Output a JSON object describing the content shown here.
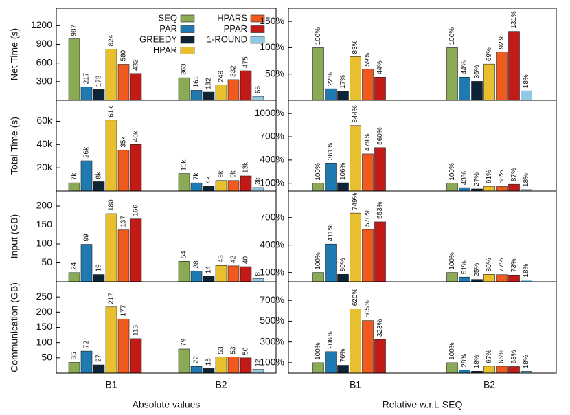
{
  "chart_data": [
    {
      "type": "bar",
      "ylabel": "Net Time (s)",
      "categories": [
        "B1",
        "B2"
      ],
      "ylim": [
        0,
        1480
      ],
      "yticks": [
        300,
        600,
        900,
        1200
      ],
      "legend": "top-right",
      "series": [
        {
          "name": "SEQ",
          "color": "#8aaa55",
          "values": [
            987,
            363
          ]
        },
        {
          "name": "PAR",
          "color": "#1e7ab0",
          "values": [
            217,
            161
          ]
        },
        {
          "name": "GREEDY",
          "color": "#0c2436",
          "values": [
            173,
            132
          ]
        },
        {
          "name": "HPAR",
          "color": "#e8bf2e",
          "values": [
            824,
            249
          ]
        },
        {
          "name": "HPARS",
          "color": "#f05a1e",
          "values": [
            580,
            332
          ]
        },
        {
          "name": "PPAR",
          "color": "#c21b17",
          "values": [
            432,
            475
          ]
        },
        {
          "name": "1-ROUND",
          "color": "#8fc9e3",
          "values": [
            null,
            65
          ]
        }
      ]
    },
    {
      "type": "bar",
      "categories": [
        "B1",
        "B2"
      ],
      "ylim": [
        0,
        175
      ],
      "yticks": [
        {
          "value": 50,
          "label": "50%"
        },
        {
          "value": 100,
          "label": "100%"
        },
        {
          "value": 150,
          "label": "150%"
        }
      ],
      "series": [
        {
          "name": "SEQ",
          "color": "#8aaa55",
          "values": [
            100,
            100
          ],
          "value_labels": [
            "100%",
            "100%"
          ]
        },
        {
          "name": "PAR",
          "color": "#1e7ab0",
          "values": [
            22,
            44
          ],
          "value_labels": [
            "22%",
            "44%"
          ]
        },
        {
          "name": "GREEDY",
          "color": "#0c2436",
          "values": [
            17,
            36
          ],
          "value_labels": [
            "17%",
            "36%"
          ]
        },
        {
          "name": "HPAR",
          "color": "#e8bf2e",
          "values": [
            83,
            69
          ],
          "value_labels": [
            "83%",
            "69%"
          ]
        },
        {
          "name": "HPARS",
          "color": "#f05a1e",
          "values": [
            59,
            92
          ],
          "value_labels": [
            "59%",
            "92%"
          ]
        },
        {
          "name": "PPAR",
          "color": "#c21b17",
          "values": [
            44,
            131
          ],
          "value_labels": [
            "44%",
            "131%"
          ]
        },
        {
          "name": "1-ROUND",
          "color": "#8fc9e3",
          "values": [
            null,
            18
          ],
          "value_labels": [
            null,
            "18%"
          ]
        }
      ]
    },
    {
      "type": "bar",
      "ylabel": "Total Time (s)",
      "categories": [
        "B1",
        "B2"
      ],
      "ylim": [
        0,
        78000
      ],
      "yticks": [
        {
          "value": 20000,
          "label": "20k"
        },
        {
          "value": 40000,
          "label": "40k"
        },
        {
          "value": 60000,
          "label": "60k"
        }
      ],
      "series": [
        {
          "name": "SEQ",
          "color": "#8aaa55",
          "values": [
            7000,
            15000
          ],
          "value_labels": [
            "7k",
            "15k"
          ]
        },
        {
          "name": "PAR",
          "color": "#1e7ab0",
          "values": [
            26000,
            7000
          ],
          "value_labels": [
            "26k",
            "7k"
          ]
        },
        {
          "name": "GREEDY",
          "color": "#0c2436",
          "values": [
            8000,
            4000
          ],
          "value_labels": [
            "8k",
            "4k"
          ]
        },
        {
          "name": "HPAR",
          "color": "#e8bf2e",
          "values": [
            61000,
            9000
          ],
          "value_labels": [
            "61k",
            "9k"
          ]
        },
        {
          "name": "HPARS",
          "color": "#f05a1e",
          "values": [
            35000,
            9000
          ],
          "value_labels": [
            "35k",
            "9k"
          ]
        },
        {
          "name": "PPAR",
          "color": "#c21b17",
          "values": [
            40000,
            13000
          ],
          "value_labels": [
            "40k",
            "13k"
          ]
        },
        {
          "name": "1-ROUND",
          "color": "#8fc9e3",
          "values": [
            null,
            3000
          ],
          "value_labels": [
            null,
            "3k"
          ]
        }
      ]
    },
    {
      "type": "bar",
      "categories": [
        "B1",
        "B2"
      ],
      "ylim": [
        0,
        1170
      ],
      "yticks": [
        {
          "value": 100,
          "label": "100%"
        },
        {
          "value": 400,
          "label": "400%"
        },
        {
          "value": 700,
          "label": "700%"
        },
        {
          "value": 1000,
          "label": "1000%"
        }
      ],
      "series": [
        {
          "name": "SEQ",
          "color": "#8aaa55",
          "values": [
            100,
            100
          ],
          "value_labels": [
            "100%",
            "100%"
          ]
        },
        {
          "name": "PAR",
          "color": "#1e7ab0",
          "values": [
            361,
            43
          ],
          "value_labels": [
            "361%",
            "43%"
          ]
        },
        {
          "name": "GREEDY",
          "color": "#0c2436",
          "values": [
            106,
            27
          ],
          "value_labels": [
            "106%",
            "27%"
          ]
        },
        {
          "name": "HPAR",
          "color": "#e8bf2e",
          "values": [
            844,
            61
          ],
          "value_labels": [
            "844%",
            "61%"
          ]
        },
        {
          "name": "HPARS",
          "color": "#f05a1e",
          "values": [
            479,
            58
          ],
          "value_labels": [
            "479%",
            "58%"
          ]
        },
        {
          "name": "PPAR",
          "color": "#c21b17",
          "values": [
            560,
            87
          ],
          "value_labels": [
            "560%",
            "87%"
          ]
        },
        {
          "name": "1-ROUND",
          "color": "#8fc9e3",
          "values": [
            null,
            18
          ],
          "value_labels": [
            null,
            "18%"
          ]
        }
      ]
    },
    {
      "type": "bar",
      "ylabel": "Input (GB)",
      "categories": [
        "B1",
        "B2"
      ],
      "ylim": [
        0,
        240
      ],
      "yticks": [
        50,
        100,
        150,
        200
      ],
      "series": [
        {
          "name": "SEQ",
          "color": "#8aaa55",
          "values": [
            24,
            54
          ]
        },
        {
          "name": "PAR",
          "color": "#1e7ab0",
          "values": [
            99,
            28
          ]
        },
        {
          "name": "GREEDY",
          "color": "#0c2436",
          "values": [
            19,
            14
          ]
        },
        {
          "name": "HPAR",
          "color": "#e8bf2e",
          "values": [
            180,
            43
          ]
        },
        {
          "name": "HPARS",
          "color": "#f05a1e",
          "values": [
            137,
            42
          ]
        },
        {
          "name": "PPAR",
          "color": "#c21b17",
          "values": [
            166,
            40
          ]
        },
        {
          "name": "1-ROUND",
          "color": "#8fc9e3",
          "values": [
            null,
            8
          ]
        }
      ]
    },
    {
      "type": "bar",
      "categories": [
        "B1",
        "B2"
      ],
      "ylim": [
        0,
        990
      ],
      "yticks": [
        {
          "value": 100,
          "label": "100%"
        },
        {
          "value": 400,
          "label": "400%"
        },
        {
          "value": 700,
          "label": "700%"
        }
      ],
      "series": [
        {
          "name": "SEQ",
          "color": "#8aaa55",
          "values": [
            100,
            100
          ],
          "value_labels": [
            "100%",
            "100%"
          ]
        },
        {
          "name": "PAR",
          "color": "#1e7ab0",
          "values": [
            411,
            51
          ],
          "value_labels": [
            "411%",
            "51%"
          ]
        },
        {
          "name": "GREEDY",
          "color": "#0c2436",
          "values": [
            80,
            25
          ],
          "value_labels": [
            "80%",
            "25%"
          ]
        },
        {
          "name": "HPAR",
          "color": "#e8bf2e",
          "values": [
            749,
            80
          ],
          "value_labels": [
            "749%",
            "80%"
          ]
        },
        {
          "name": "HPARS",
          "color": "#f05a1e",
          "values": [
            570,
            77
          ],
          "value_labels": [
            "570%",
            "77%"
          ]
        },
        {
          "name": "PPAR",
          "color": "#c21b17",
          "values": [
            653,
            73
          ],
          "value_labels": [
            "653%",
            "73%"
          ]
        },
        {
          "name": "1-ROUND",
          "color": "#8fc9e3",
          "values": [
            null,
            18
          ],
          "value_labels": [
            null,
            "18%"
          ]
        }
      ]
    },
    {
      "type": "bar",
      "ylabel": "Communication (GB)",
      "xlabel": "Absolute values",
      "categories": [
        "B1",
        "B2"
      ],
      "ylim": [
        0,
        300
      ],
      "yticks": [
        50,
        100,
        150,
        200,
        250
      ],
      "series": [
        {
          "name": "SEQ",
          "color": "#8aaa55",
          "values": [
            35,
            79
          ]
        },
        {
          "name": "PAR",
          "color": "#1e7ab0",
          "values": [
            72,
            22
          ]
        },
        {
          "name": "GREEDY",
          "color": "#0c2436",
          "values": [
            27,
            15
          ]
        },
        {
          "name": "HPAR",
          "color": "#e8bf2e",
          "values": [
            217,
            53
          ]
        },
        {
          "name": "HPARS",
          "color": "#f05a1e",
          "values": [
            177,
            53
          ]
        },
        {
          "name": "PPAR",
          "color": "#c21b17",
          "values": [
            113,
            50
          ]
        },
        {
          "name": "1-ROUND",
          "color": "#8fc9e3",
          "values": [
            null,
            12
          ]
        }
      ]
    },
    {
      "type": "bar",
      "xlabel": "Relative w.r.t. SEQ",
      "categories": [
        "B1",
        "B2"
      ],
      "ylim": [
        0,
        880
      ],
      "yticks": [
        {
          "value": 100,
          "label": "100%"
        },
        {
          "value": 300,
          "label": "300%"
        },
        {
          "value": 500,
          "label": "500%"
        },
        {
          "value": 700,
          "label": "700%"
        }
      ],
      "series": [
        {
          "name": "SEQ",
          "color": "#8aaa55",
          "values": [
            100,
            100
          ],
          "value_labels": [
            "100%",
            "100%"
          ]
        },
        {
          "name": "PAR",
          "color": "#1e7ab0",
          "values": [
            206,
            28
          ],
          "value_labels": [
            "206%",
            "28%"
          ]
        },
        {
          "name": "GREEDY",
          "color": "#0c2436",
          "values": [
            76,
            18
          ],
          "value_labels": [
            "76%",
            "18%"
          ]
        },
        {
          "name": "HPAR",
          "color": "#e8bf2e",
          "values": [
            620,
            67
          ],
          "value_labels": [
            "620%",
            "67%"
          ]
        },
        {
          "name": "HPARS",
          "color": "#f05a1e",
          "values": [
            505,
            66
          ],
          "value_labels": [
            "505%",
            "66%"
          ]
        },
        {
          "name": "PPAR",
          "color": "#c21b17",
          "values": [
            323,
            63
          ],
          "value_labels": [
            "323%",
            "63%"
          ]
        },
        {
          "name": "1-ROUND",
          "color": "#8fc9e3",
          "values": [
            null,
            18
          ],
          "value_labels": [
            null,
            "18%"
          ]
        }
      ]
    }
  ]
}
